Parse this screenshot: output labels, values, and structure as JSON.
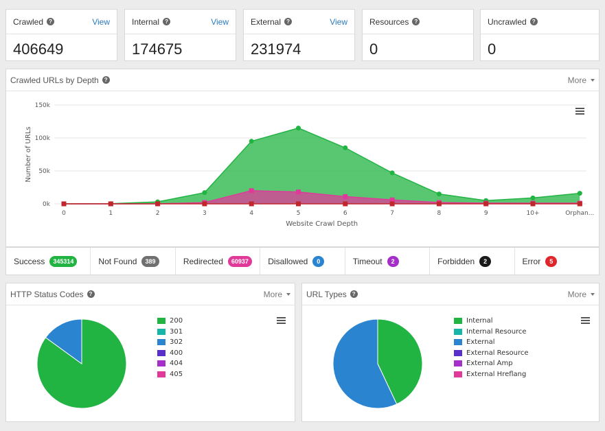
{
  "stats": [
    {
      "label": "Crawled",
      "value": "406649",
      "link": "View"
    },
    {
      "label": "Internal",
      "value": "174675",
      "link": "View"
    },
    {
      "label": "External",
      "value": "231974",
      "link": "View"
    },
    {
      "label": "Resources",
      "value": "0",
      "link": ""
    },
    {
      "label": "Uncrawled",
      "value": "0",
      "link": ""
    }
  ],
  "depth_panel": {
    "title": "Crawled URLs by Depth",
    "more": "More"
  },
  "status_row": [
    {
      "label": "Success",
      "count": "345314",
      "color": "#22b443"
    },
    {
      "label": "Not Found",
      "count": "389",
      "color": "#707070"
    },
    {
      "label": "Redirected",
      "count": "60937",
      "color": "#e0399a"
    },
    {
      "label": "Disallowed",
      "count": "0",
      "color": "#2a84d0"
    },
    {
      "label": "Timeout",
      "count": "2",
      "color": "#a52fc9"
    },
    {
      "label": "Forbidden",
      "count": "2",
      "color": "#1a1a1a"
    },
    {
      "label": "Error",
      "count": "5",
      "color": "#e0262b"
    }
  ],
  "http_panel": {
    "title": "HTTP Status Codes",
    "more": "More"
  },
  "url_panel": {
    "title": "URL Types",
    "more": "More"
  },
  "chart_data": [
    {
      "type": "area",
      "title": "",
      "xlabel": "Website Crawl Depth",
      "ylabel": "Number of URLs",
      "categories": [
        "0",
        "1",
        "2",
        "3",
        "4",
        "5",
        "6",
        "7",
        "8",
        "9",
        "10+",
        "Orphan..."
      ],
      "ytick_labels": [
        "0k",
        "50k",
        "100k",
        "150k"
      ],
      "ylim": [
        0,
        150000
      ],
      "grid": true,
      "series": [
        {
          "name": "",
          "color": "#22b443",
          "values": [
            0,
            200,
            3000,
            17000,
            95000,
            115000,
            85000,
            47000,
            15000,
            5000,
            9000,
            16000
          ]
        },
        {
          "name": "",
          "color": "#e0399a",
          "values": [
            0,
            0,
            0,
            2000,
            20000,
            18000,
            11000,
            6000,
            2000,
            1000,
            1000,
            1000
          ]
        },
        {
          "name": "",
          "color": "#c0262b",
          "values": [
            0,
            0,
            0,
            0,
            0,
            0,
            0,
            0,
            0,
            0,
            0,
            0
          ]
        }
      ]
    },
    {
      "type": "pie",
      "legend": [
        "200",
        "301",
        "302",
        "400",
        "404",
        "405"
      ],
      "colors": [
        "#22b443",
        "#17b5a7",
        "#2a84d0",
        "#5a2fc9",
        "#a52fc9",
        "#e0399a"
      ],
      "values": [
        85,
        0,
        15,
        0,
        0,
        0
      ]
    },
    {
      "type": "pie",
      "legend": [
        "Internal",
        "Internal Resource",
        "External",
        "External Resource",
        "External Amp",
        "External Hreflang"
      ],
      "colors": [
        "#22b443",
        "#17b5a7",
        "#2a84d0",
        "#5a2fc9",
        "#a52fc9",
        "#e0399a"
      ],
      "values": [
        43,
        0,
        57,
        0,
        0,
        0
      ]
    }
  ]
}
